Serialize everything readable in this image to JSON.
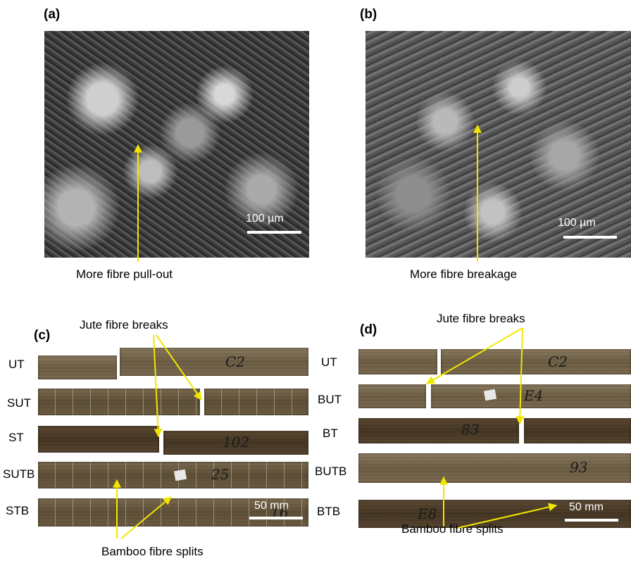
{
  "panels": {
    "a": {
      "label": "(a)",
      "scale": "100 µm",
      "caption": "More fibre pull-out"
    },
    "b": {
      "label": "(b)",
      "scale": "100 µm",
      "caption": "More fibre breakage"
    },
    "c": {
      "label": "(c)",
      "scale": "50 mm",
      "top_note": "Jute fibre breaks",
      "bottom_note": "Bamboo fibre splits",
      "rows": [
        "UT",
        "SUT",
        "ST",
        "SUTB",
        "STB"
      ]
    },
    "d": {
      "label": "(d)",
      "scale": "50 mm",
      "top_note": "Jute fibre breaks",
      "bottom_note": "Bamboo fibre splits",
      "rows": [
        "UT",
        "BUT",
        "BT",
        "BUTB",
        "BTB"
      ]
    }
  },
  "specimen_marks": {
    "c": [
      "C2",
      "102",
      "25",
      "16"
    ],
    "d": [
      "C2",
      "E4",
      "83",
      "93",
      "E8"
    ]
  },
  "colors": {
    "arrow": "#f2e600",
    "scale": "#ffffff"
  }
}
